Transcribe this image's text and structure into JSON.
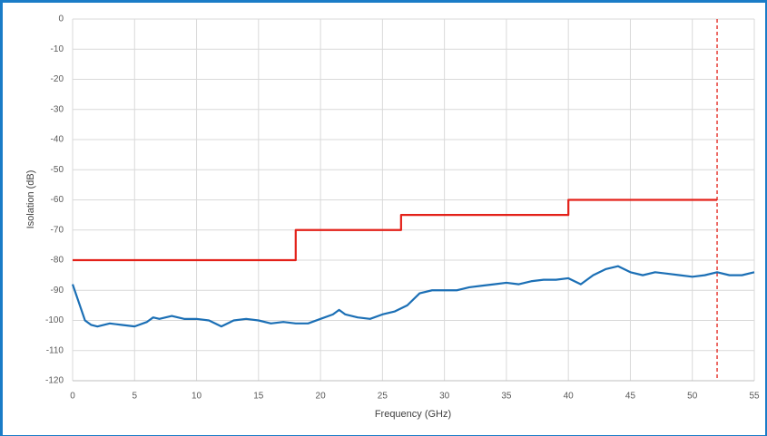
{
  "chart_data": {
    "type": "line",
    "x_label": "Frequency (GHz)",
    "y_label": "Isolation (dB)",
    "xlim": [
      0,
      55
    ],
    "xticks": [
      0,
      5,
      10,
      15,
      20,
      25,
      30,
      35,
      40,
      45,
      50,
      55
    ],
    "ylim": [
      -120,
      0
    ],
    "yticks": [
      0,
      -10,
      -20,
      -30,
      -40,
      -50,
      -60,
      -70,
      -80,
      -90,
      -100,
      -110,
      -120
    ],
    "grid": true,
    "series": [
      {
        "color": "#e32119",
        "dash": false,
        "x": [
          0,
          18,
          18,
          26.5,
          26.5,
          40,
          40,
          52
        ],
        "values": [
          -80,
          -80,
          -70,
          -70,
          -65,
          -65,
          -60,
          -60
        ]
      },
      {
        "color": "#e32119",
        "dash": true,
        "x": [
          52,
          52
        ],
        "values": [
          0,
          -120
        ]
      },
      {
        "color": "#1b6fb5",
        "dash": false,
        "x": [
          0,
          0.5,
          1,
          1.5,
          2,
          3,
          4,
          5,
          6,
          6.5,
          7,
          8,
          9,
          10,
          11,
          12,
          13,
          14,
          15,
          16,
          17,
          18,
          19,
          20,
          21,
          21.5,
          22,
          23,
          24,
          25,
          26,
          27,
          28,
          29,
          30,
          31,
          32,
          33,
          34,
          35,
          36,
          37,
          38,
          39,
          40,
          41,
          42,
          43,
          44,
          45,
          46,
          47,
          48,
          49,
          50,
          51,
          52,
          53,
          54,
          55
        ],
        "values": [
          -88,
          -94,
          -100,
          -101.5,
          -102,
          -101,
          -101.5,
          -102,
          -100.5,
          -99,
          -99.5,
          -98.5,
          -99.5,
          -99.5,
          -100,
          -102,
          -100,
          -99.5,
          -100,
          -101,
          -100.5,
          -101,
          -101,
          -99.5,
          -98,
          -96.5,
          -98,
          -99,
          -99.5,
          -98,
          -97,
          -95,
          -91,
          -90,
          -90,
          -90,
          -89,
          -88.5,
          -88,
          -87.5,
          -88,
          -87,
          -86.5,
          -86.5,
          -86,
          -88,
          -85,
          -83,
          -82,
          -84,
          -85,
          -84,
          -84.5,
          -85,
          -85.5,
          -85,
          -84,
          -85,
          -85,
          -84
        ]
      }
    ]
  }
}
